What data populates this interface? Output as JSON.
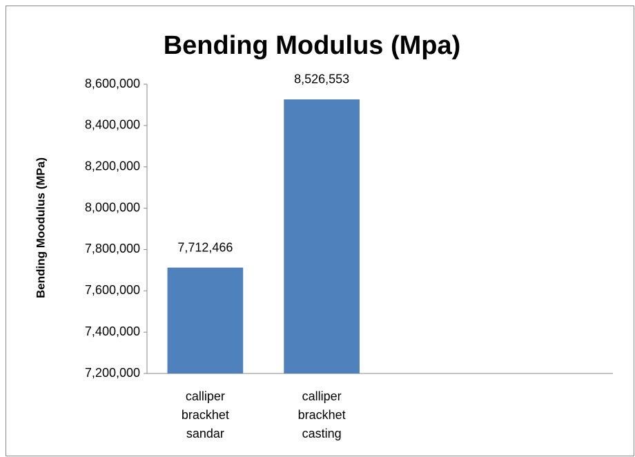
{
  "chart_data": {
    "type": "bar",
    "title": "Bending Modulus (Mpa)",
    "y_label": "Bending Moodulus (MPa)",
    "categories": [
      "calliper brackhet sandar",
      "calliper brackhet casting",
      null,
      null
    ],
    "values": [
      7712466,
      8526553,
      null,
      null
    ],
    "value_labels": [
      "7,712,466",
      "8,526,553",
      null,
      null
    ],
    "color": "#4f81bd",
    "ylim": [
      7200000,
      8600000
    ],
    "yticks": [
      {
        "value": 7200000,
        "label": "7,200,000"
      },
      {
        "value": 7400000,
        "label": "7,400,000"
      },
      {
        "value": 7600000,
        "label": "7,600,000"
      },
      {
        "value": 7800000,
        "label": "7,800,000"
      },
      {
        "value": 8000000,
        "label": "8,000,000"
      },
      {
        "value": 8200000,
        "label": "8,200,000"
      },
      {
        "value": 8400000,
        "label": "8,400,000"
      },
      {
        "value": 8600000,
        "label": "8,600,000"
      }
    ],
    "grid": false
  }
}
